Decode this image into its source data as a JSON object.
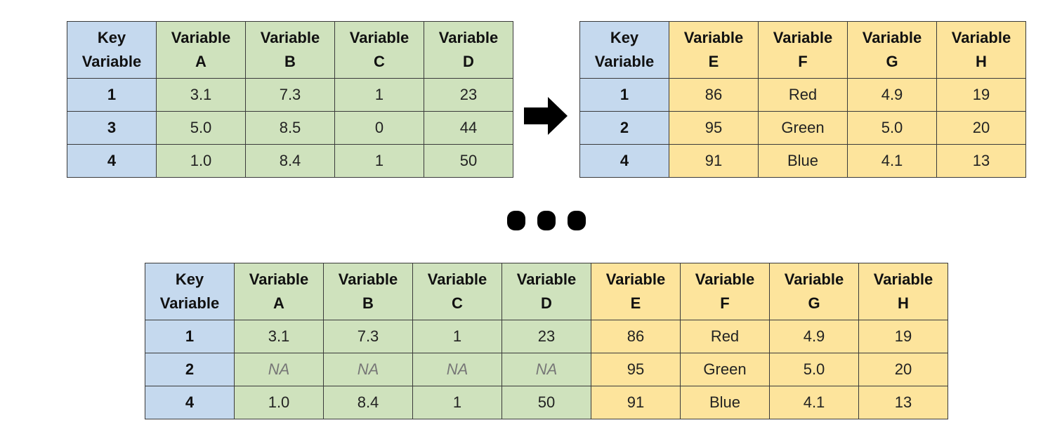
{
  "colors": {
    "key": "#c5d9ee",
    "left_table": "#cfe2bd",
    "right_table": "#fde49c"
  },
  "left_table": {
    "headers": [
      "Key Variable",
      "Variable A",
      "Variable B",
      "Variable C",
      "Variable D"
    ],
    "rows": [
      [
        "1",
        "3.1",
        "7.3",
        "1",
        "23"
      ],
      [
        "3",
        "5.0",
        "8.5",
        "0",
        "44"
      ],
      [
        "4",
        "1.0",
        "8.4",
        "1",
        "50"
      ]
    ]
  },
  "arrow_icon": "right-arrow-icon",
  "right_table": {
    "headers": [
      "Key Variable",
      "Variable E",
      "Variable F",
      "Variable G",
      "Variable H"
    ],
    "rows": [
      [
        "1",
        "86",
        "Red",
        "4.9",
        "19"
      ],
      [
        "2",
        "95",
        "Green",
        "5.0",
        "20"
      ],
      [
        "4",
        "91",
        "Blue",
        "4.1",
        "13"
      ]
    ]
  },
  "ellipsis_icon": "ellipsis-icon",
  "joined_table": {
    "headers": [
      "Key Variable",
      "Variable A",
      "Variable B",
      "Variable C",
      "Variable D",
      "Variable E",
      "Variable F",
      "Variable G",
      "Variable H"
    ],
    "rows": [
      [
        "1",
        "3.1",
        "7.3",
        "1",
        "23",
        "86",
        "Red",
        "4.9",
        "19"
      ],
      [
        "2",
        "NA",
        "NA",
        "NA",
        "NA",
        "95",
        "Green",
        "5.0",
        "20"
      ],
      [
        "4",
        "1.0",
        "8.4",
        "1",
        "50",
        "91",
        "Blue",
        "4.1",
        "13"
      ]
    ]
  }
}
